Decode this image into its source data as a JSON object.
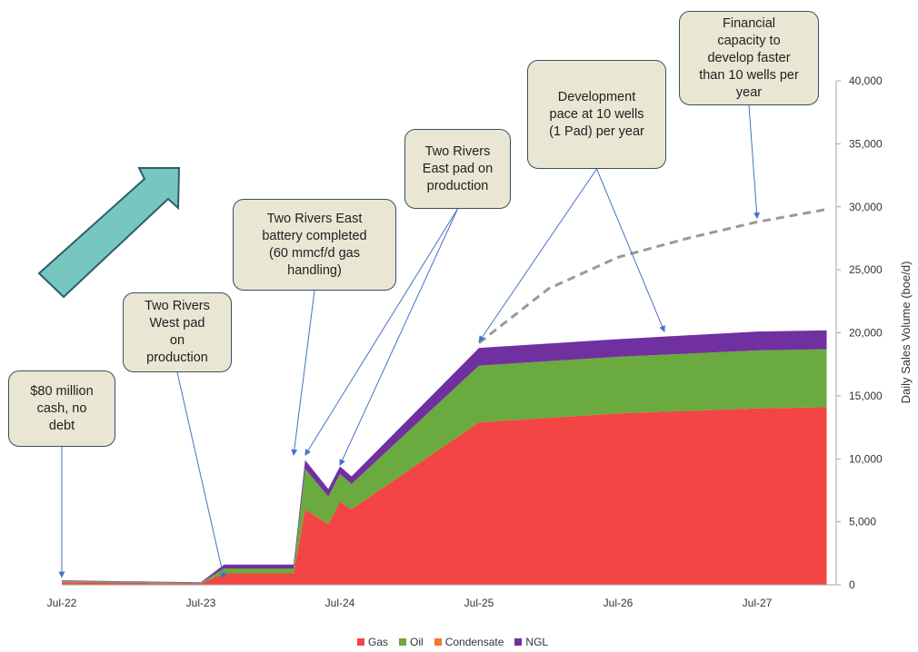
{
  "chart_data": {
    "type": "area",
    "stacked": true,
    "x_ticks": [
      "Jul-22",
      "Jul-23",
      "Jul-24",
      "Jul-25",
      "Jul-26",
      "Jul-27"
    ],
    "ylabel": "Daily Sales Volume (boe/d)",
    "ylim": [
      0,
      40000
    ],
    "y_ticks": [
      0,
      5000,
      10000,
      15000,
      20000,
      25000,
      30000,
      35000,
      40000
    ],
    "y_tick_labels": [
      "0",
      "5,000",
      "10,000",
      "15,000",
      "20,000",
      "25,000",
      "30,000",
      "35,000",
      "40,000"
    ],
    "y_axis_position": "right",
    "legend_position": "bottom-center",
    "grid": false,
    "x": [
      "2022-07",
      "2023-07",
      "2023-09",
      "2024-03",
      "2024-04",
      "2024-06",
      "2024-07",
      "2024-08",
      "2025-07",
      "2026-07",
      "2027-07",
      "2028-01"
    ],
    "series": [
      {
        "name": "Gas",
        "color": "#f44545",
        "values": [
          200,
          100,
          900,
          900,
          6000,
          4800,
          6600,
          6000,
          12900,
          13600,
          14000,
          14100
        ]
      },
      {
        "name": "Oil",
        "color": "#6aaa3e",
        "values": [
          100,
          50,
          400,
          400,
          3200,
          2200,
          2200,
          2000,
          4500,
          4500,
          4600,
          4600
        ]
      },
      {
        "name": "Condensate",
        "color": "#ef7b2f",
        "values": [
          0,
          0,
          0,
          0,
          0,
          0,
          0,
          0,
          0,
          0,
          0,
          0
        ]
      },
      {
        "name": "NGL",
        "color": "#7030a0",
        "values": [
          50,
          50,
          300,
          300,
          700,
          600,
          600,
          600,
          1400,
          1400,
          1500,
          1500
        ]
      }
    ],
    "potential_line": {
      "style": "dashed",
      "color": "#999999",
      "x": [
        "2025-07",
        "2026-01",
        "2026-07",
        "2027-01",
        "2027-07",
        "2028-01"
      ],
      "values": [
        19200,
        23500,
        26000,
        27500,
        28800,
        29800
      ]
    },
    "trend_arrow_color": "#76c7c0",
    "annotations": [
      {
        "text": "$80 million\ncash, no\ndebt",
        "target": {
          "x": "2022-07",
          "y": 300
        }
      },
      {
        "text": "Two Rivers\nWest pad\non\nproduction",
        "target": {
          "x": "2023-09",
          "y": 200
        }
      },
      {
        "text": "Two Rivers East\nbattery completed\n(60 mmcf/d gas\nhandling)",
        "target": {
          "x": "2024-03",
          "y": 10000
        }
      },
      {
        "text": "Two Rivers\nEast pad on\nproduction",
        "targets": [
          {
            "x": "2024-04",
            "y": 10000
          },
          {
            "x": "2024-07",
            "y": 9200
          }
        ]
      },
      {
        "text": "Development\npace at 10 wells\n(1 Pad) per year",
        "targets": [
          {
            "x": "2025-07",
            "y": 19000
          },
          {
            "x": "2026-11",
            "y": 19800
          }
        ]
      },
      {
        "text": "Financial\ncapacity to\ndevelop faster\nthan 10 wells per\nyear",
        "target": {
          "x": "2027-07",
          "y": 28800
        }
      }
    ]
  }
}
